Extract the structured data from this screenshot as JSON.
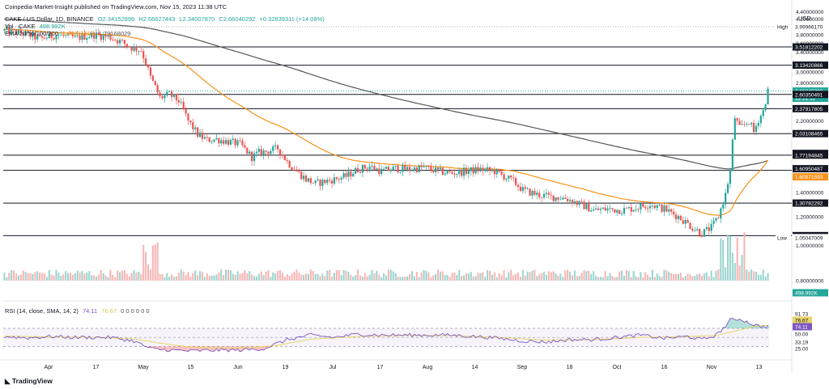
{
  "header": {
    "publisher_line": "Coinpedia-Market-Insight published on TradingView.com, Nov 15, 2023 11:38 UTC",
    "symbol": "CAKE / US Dollar, 1D, BINANCE",
    "ohlc": {
      "o": "O2.34152898",
      "h": "H2.66627443",
      "l": "L2.34007870",
      "c": "C2.66040292",
      "chg": "+0.32839311 (+14.08%)"
    },
    "volume_label": "Vol · CAKE",
    "volume_value": "498.992K",
    "ema_label": "EMA 20/50/100/200",
    "ema_v1": "1.60871593",
    "ema_v2": "1.79168029",
    "rsi_label": "RSI (14, close, SMA, 14, 2)",
    "rsi_v1": "74.11",
    "rsi_v2": "76.67",
    "rsi_zeros": "0 0 0 0 0 0"
  },
  "currency": "USD",
  "footer_logo": "TradingView",
  "colors": {
    "up": "#26a69a",
    "down": "#ef5350",
    "ema_fast": "#f7931a",
    "ema_slow": "#555555",
    "rsi": "#7e57c2",
    "rsi_ma": "#e8d56a"
  },
  "chart_data": {
    "type": "candlestick",
    "y_scale": "log",
    "ylim": [
      0.8,
      4.5
    ],
    "y_ticks": [
      "4.40000000",
      "4.20000000",
      "3.80000000",
      "3.60000000",
      "3.40000000",
      "3.00000000",
      "2.80000000",
      "2.20000000",
      "1.40000000",
      "1.20000000",
      "1.00000000",
      "0.80000000"
    ],
    "x_ticks": [
      "Apr",
      "17",
      "May",
      "15",
      "Jun",
      "19",
      "Jul",
      "17",
      "Aug",
      "14",
      "Sep",
      "18",
      "Oct",
      "16",
      "Nov",
      "13"
    ],
    "price_labels": [
      {
        "text": "High",
        "value": "3.99966170",
        "type": "high"
      },
      {
        "text": "",
        "value": "3.51812202",
        "type": "level"
      },
      {
        "text": "",
        "value": "3.13420866",
        "type": "level"
      },
      {
        "text": "",
        "value": "2.66040292",
        "type": "last"
      },
      {
        "text": "",
        "value": "12:21:12",
        "type": "timer"
      },
      {
        "text": "",
        "value": "2.60350491",
        "type": "level"
      },
      {
        "text": "",
        "value": "2.37917805",
        "type": "level"
      },
      {
        "text": "",
        "value": "2.03108465",
        "type": "level"
      },
      {
        "text": "",
        "value": "1.79168029",
        "type": "ema200"
      },
      {
        "text": "",
        "value": "1.77194845",
        "type": "level"
      },
      {
        "text": "",
        "value": "1.60950487",
        "type": "level"
      },
      {
        "text": "",
        "value": "1.60871593",
        "type": "ema50"
      },
      {
        "text": "",
        "value": "1.30782292",
        "type": "level"
      },
      {
        "text": "",
        "value": "1.06415854",
        "type": "level"
      },
      {
        "text": "Low",
        "value": "1.05047009",
        "type": "low"
      },
      {
        "text": "",
        "value": "498.992K",
        "type": "vol"
      }
    ],
    "horizontal_levels": [
      3.51812202,
      3.13420866,
      2.60350491,
      2.37917805,
      2.03108465,
      1.77194845,
      1.60950487,
      1.30782292,
      1.06415854
    ],
    "high_level": 3.9996617,
    "last_price": 2.66040292,
    "rsi_ticks": [
      "91.73",
      "76.67",
      "74.11",
      "50.00",
      "33.19",
      "25.00"
    ],
    "rsi_levels": [
      70,
      50,
      30
    ],
    "price_key": [
      [
        0,
        3.9
      ],
      [
        8,
        3.84
      ],
      [
        15,
        3.7
      ],
      [
        22,
        3.8
      ],
      [
        30,
        3.72
      ],
      [
        38,
        3.8
      ],
      [
        45,
        3.74
      ],
      [
        50,
        3.62
      ],
      [
        54,
        3.5
      ],
      [
        58,
        3.45
      ],
      [
        62,
        2.9
      ],
      [
        66,
        2.55
      ],
      [
        70,
        2.6
      ],
      [
        74,
        2.5
      ],
      [
        78,
        2.2
      ],
      [
        82,
        2.02
      ],
      [
        86,
        1.95
      ],
      [
        90,
        1.96
      ],
      [
        95,
        1.93
      ],
      [
        100,
        1.9
      ],
      [
        105,
        1.75
      ],
      [
        108,
        1.8
      ],
      [
        112,
        1.82
      ],
      [
        116,
        1.85
      ],
      [
        120,
        1.7
      ],
      [
        124,
        1.6
      ],
      [
        128,
        1.52
      ],
      [
        132,
        1.48
      ],
      [
        136,
        1.5
      ],
      [
        140,
        1.52
      ],
      [
        145,
        1.55
      ],
      [
        150,
        1.62
      ],
      [
        155,
        1.65
      ],
      [
        160,
        1.6
      ],
      [
        166,
        1.63
      ],
      [
        172,
        1.62
      ],
      [
        178,
        1.64
      ],
      [
        184,
        1.6
      ],
      [
        190,
        1.58
      ],
      [
        196,
        1.6
      ],
      [
        202,
        1.62
      ],
      [
        208,
        1.6
      ],
      [
        212,
        1.55
      ],
      [
        216,
        1.5
      ],
      [
        220,
        1.42
      ],
      [
        226,
        1.38
      ],
      [
        232,
        1.36
      ],
      [
        238,
        1.35
      ],
      [
        244,
        1.3
      ],
      [
        250,
        1.25
      ],
      [
        256,
        1.26
      ],
      [
        262,
        1.25
      ],
      [
        268,
        1.27
      ],
      [
        274,
        1.3
      ],
      [
        280,
        1.26
      ],
      [
        286,
        1.2
      ],
      [
        292,
        1.12
      ],
      [
        296,
        1.08
      ],
      [
        300,
        1.12
      ],
      [
        303,
        1.2
      ],
      [
        306,
        1.38
      ],
      [
        308,
        1.6
      ],
      [
        310,
        2.25
      ],
      [
        312,
        2.1
      ],
      [
        314,
        2.15
      ],
      [
        316,
        2.2
      ],
      [
        318,
        2.05
      ],
      [
        320,
        2.22
      ],
      [
        322,
        2.34
      ],
      [
        324,
        2.66
      ]
    ],
    "rsi_key": [
      [
        0,
        52
      ],
      [
        10,
        49
      ],
      [
        20,
        52
      ],
      [
        30,
        50
      ],
      [
        45,
        50
      ],
      [
        55,
        42
      ],
      [
        62,
        25
      ],
      [
        70,
        22
      ],
      [
        80,
        20
      ],
      [
        90,
        22
      ],
      [
        100,
        22
      ],
      [
        110,
        25
      ],
      [
        120,
        45
      ],
      [
        130,
        55
      ],
      [
        140,
        50
      ],
      [
        150,
        57
      ],
      [
        160,
        55
      ],
      [
        170,
        55
      ],
      [
        180,
        55
      ],
      [
        190,
        55
      ],
      [
        200,
        52
      ],
      [
        210,
        48
      ],
      [
        220,
        42
      ],
      [
        230,
        40
      ],
      [
        240,
        45
      ],
      [
        250,
        45
      ],
      [
        260,
        50
      ],
      [
        270,
        55
      ],
      [
        280,
        48
      ],
      [
        290,
        52
      ],
      [
        296,
        45
      ],
      [
        302,
        55
      ],
      [
        306,
        75
      ],
      [
        308,
        88
      ],
      [
        312,
        91
      ],
      [
        316,
        82
      ],
      [
        320,
        75
      ],
      [
        324,
        74
      ]
    ],
    "rsi_ma_key": [
      [
        0,
        53
      ],
      [
        20,
        51
      ],
      [
        40,
        50
      ],
      [
        55,
        47
      ],
      [
        65,
        38
      ],
      [
        80,
        28
      ],
      [
        100,
        26
      ],
      [
        115,
        32
      ],
      [
        130,
        46
      ],
      [
        150,
        52
      ],
      [
        170,
        54
      ],
      [
        190,
        54
      ],
      [
        210,
        50
      ],
      [
        230,
        44
      ],
      [
        250,
        45
      ],
      [
        270,
        50
      ],
      [
        290,
        52
      ],
      [
        302,
        54
      ],
      [
        310,
        64
      ],
      [
        318,
        74
      ],
      [
        324,
        77
      ]
    ]
  }
}
